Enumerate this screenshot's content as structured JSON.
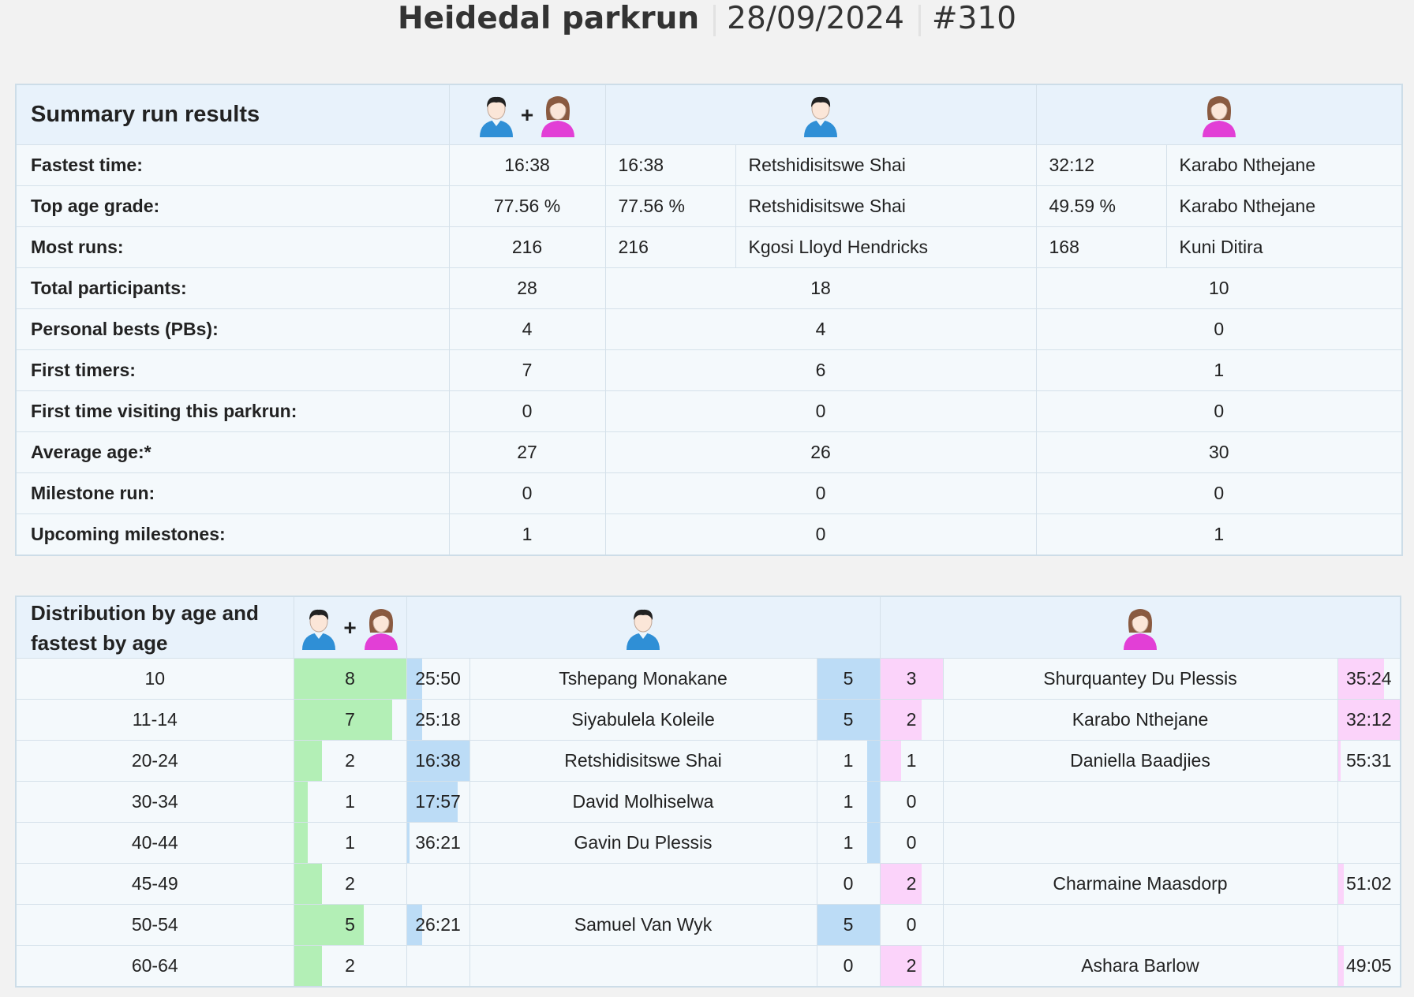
{
  "header": {
    "title": "Heidedal parkrun",
    "date": "28/09/2024",
    "event": "#310"
  },
  "icons": {
    "all": "male-female-icon",
    "male": "male-icon",
    "female": "female-icon",
    "plus": "+"
  },
  "summary": {
    "title": "Summary run results",
    "rows": [
      {
        "label": "Fastest time:",
        "all": "16:38",
        "m_val": "16:38",
        "m_name": "Retshidisitswe Shai",
        "f_val": "32:12",
        "f_name": "Karabo Nthejane"
      },
      {
        "label": "Top age grade:",
        "all": "77.56 %",
        "m_val": "77.56 %",
        "m_name": "Retshidisitswe Shai",
        "f_val": "49.59 %",
        "f_name": "Karabo Nthejane"
      },
      {
        "label": "Most runs:",
        "all": "216",
        "m_val": "216",
        "m_name": "Kgosi Lloyd Hendricks",
        "f_val": "168",
        "f_name": "Kuni Ditira"
      },
      {
        "label": "Total participants:",
        "all": "28",
        "m": "18",
        "f": "10"
      },
      {
        "label": "Personal bests (PBs):",
        "all": "4",
        "m": "4",
        "f": "0"
      },
      {
        "label": "First timers:",
        "all": "7",
        "m": "6",
        "f": "1"
      },
      {
        "label": "First time visiting this parkrun:",
        "all": "0",
        "m": "0",
        "f": "0"
      },
      {
        "label": "Average age:*",
        "all": "27",
        "m": "26",
        "f": "30"
      },
      {
        "label": "Milestone run:",
        "all": "0",
        "m": "0",
        "f": "0"
      },
      {
        "label": "Upcoming milestones:",
        "all": "1",
        "m": "0",
        "f": "1"
      }
    ]
  },
  "distribution": {
    "title": "Distribution by age and fastest by age",
    "rows": [
      {
        "age": "10",
        "total": "8",
        "total_frac": 1.0,
        "m_time": "25:50",
        "m_time_frac": 0.25,
        "m_name": "Tshepang Monakane",
        "m_count": "5",
        "m_count_frac": 1.0,
        "f_count": "3",
        "f_count_frac": 1.0,
        "f_name": "Shurquantey Du Plessis",
        "f_time": "35:24",
        "f_time_frac": 0.75
      },
      {
        "age": "11-14",
        "total": "7",
        "total_frac": 0.875,
        "m_time": "25:18",
        "m_time_frac": 0.25,
        "m_name": "Siyabulela Koleile",
        "m_count": "5",
        "m_count_frac": 1.0,
        "f_count": "2",
        "f_count_frac": 0.67,
        "f_name": "Karabo Nthejane",
        "f_time": "32:12",
        "f_time_frac": 1.0
      },
      {
        "age": "20-24",
        "total": "2",
        "total_frac": 0.25,
        "m_time": "16:38",
        "m_time_frac": 1.0,
        "m_name": "Retshidisitswe Shai",
        "m_count": "1",
        "m_count_frac": 0.2,
        "f_count": "1",
        "f_count_frac": 0.33,
        "f_name": "Daniella Baadjies",
        "f_time": "55:31",
        "f_time_frac": 0.05
      },
      {
        "age": "30-34",
        "total": "1",
        "total_frac": 0.125,
        "m_time": "17:57",
        "m_time_frac": 0.82,
        "m_name": "David Molhiselwa",
        "m_count": "1",
        "m_count_frac": 0.2,
        "f_count": "0",
        "f_count_frac": 0,
        "f_name": "",
        "f_time": "",
        "f_time_frac": 0
      },
      {
        "age": "40-44",
        "total": "1",
        "total_frac": 0.125,
        "m_time": "36:21",
        "m_time_frac": 0.04,
        "m_name": "Gavin Du Plessis",
        "m_count": "1",
        "m_count_frac": 0.2,
        "f_count": "0",
        "f_count_frac": 0,
        "f_name": "",
        "f_time": "",
        "f_time_frac": 0
      },
      {
        "age": "45-49",
        "total": "2",
        "total_frac": 0.25,
        "m_time": "",
        "m_time_frac": 0,
        "m_name": "",
        "m_count": "0",
        "m_count_frac": 0,
        "f_count": "2",
        "f_count_frac": 0.67,
        "f_name": "Charmaine Maasdorp",
        "f_time": "51:02",
        "f_time_frac": 0.1
      },
      {
        "age": "50-54",
        "total": "5",
        "total_frac": 0.625,
        "m_time": "26:21",
        "m_time_frac": 0.25,
        "m_name": "Samuel Van Wyk",
        "m_count": "5",
        "m_count_frac": 1.0,
        "f_count": "0",
        "f_count_frac": 0,
        "f_name": "",
        "f_time": "",
        "f_time_frac": 0
      },
      {
        "age": "60-64",
        "total": "2",
        "total_frac": 0.25,
        "m_time": "",
        "m_time_frac": 0,
        "m_name": "",
        "m_count": "0",
        "m_count_frac": 0,
        "f_count": "2",
        "f_count_frac": 0.67,
        "f_name": "Ashara Barlow",
        "f_time": "49:05",
        "f_time_frac": 0.1
      }
    ]
  }
}
